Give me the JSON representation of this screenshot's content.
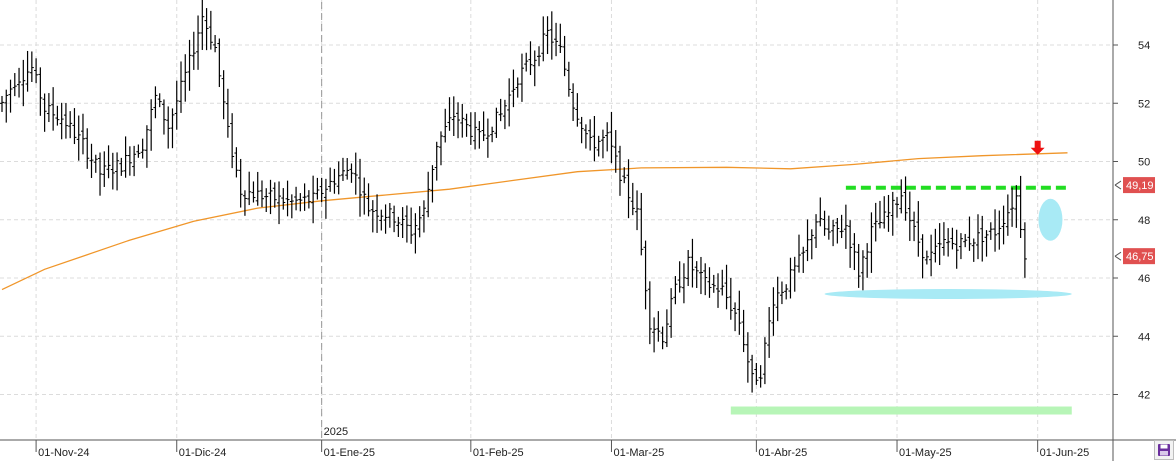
{
  "chart_data": {
    "type": "ohlc",
    "y_ticks": [
      "42",
      "44",
      "46",
      "48",
      "50",
      "52",
      "54"
    ],
    "ylim": [
      40.8,
      55.5
    ],
    "x_ticks": [
      {
        "label": "01-Nov-24",
        "bar": 8
      },
      {
        "label": "01-Dic-24",
        "bar": 41
      },
      {
        "label": "01-Ene-25",
        "bar": 75
      },
      {
        "label": "01-Feb-25",
        "bar": 110
      },
      {
        "label": "01-Mar-25",
        "bar": 143
      },
      {
        "label": "01-Abr-25",
        "bar": 177
      },
      {
        "label": "01-May-25",
        "bar": 210
      },
      {
        "label": "01-Jun-25",
        "bar": 243
      }
    ],
    "year_marker": {
      "label": "2025",
      "bar": 75
    },
    "price_tags": [
      {
        "label": "49,19",
        "value": 49.19
      },
      {
        "label": "46,75",
        "value": 46.75
      }
    ],
    "bar_count": 257,
    "grid": true,
    "colors": {
      "bars": "#000000",
      "moving_average": "#f0962a",
      "resistance": "#22dd22",
      "support": "#b7f5b7",
      "highlight": "#a8eaf5",
      "arrow": "#ee1111",
      "price_tag": "#e05050",
      "grid": "#dcdcdc"
    },
    "resistance_line": {
      "value": 49.1,
      "from_bar": 198,
      "to_bar": 250
    },
    "support_line": {
      "value": 41.45,
      "from_bar": 171,
      "to_bar": 251
    },
    "highlight_ellipse": {
      "value": 45.45,
      "from_bar": 193,
      "to_bar": 251
    },
    "highlight_oval": {
      "value": 48.0,
      "bar": 246
    },
    "arrow_marker": {
      "bar": 243,
      "value": 50.3
    },
    "moving_average": [
      {
        "bar": 0,
        "value": 45.6
      },
      {
        "bar": 10,
        "value": 46.3
      },
      {
        "bar": 20,
        "value": 46.8
      },
      {
        "bar": 30,
        "value": 47.3
      },
      {
        "bar": 45,
        "value": 47.95
      },
      {
        "bar": 60,
        "value": 48.4
      },
      {
        "bar": 75,
        "value": 48.65
      },
      {
        "bar": 90,
        "value": 48.85
      },
      {
        "bar": 105,
        "value": 49.05
      },
      {
        "bar": 120,
        "value": 49.35
      },
      {
        "bar": 135,
        "value": 49.65
      },
      {
        "bar": 150,
        "value": 49.78
      },
      {
        "bar": 170,
        "value": 49.8
      },
      {
        "bar": 185,
        "value": 49.75
      },
      {
        "bar": 200,
        "value": 49.9
      },
      {
        "bar": 215,
        "value": 50.1
      },
      {
        "bar": 230,
        "value": 50.2
      },
      {
        "bar": 250,
        "value": 50.3
      }
    ],
    "price_path": [
      {
        "bar": 0,
        "value": 52.0
      },
      {
        "bar": 3,
        "value": 52.8
      },
      {
        "bar": 7,
        "value": 53.2
      },
      {
        "bar": 10,
        "value": 51.8
      },
      {
        "bar": 14,
        "value": 51.5
      },
      {
        "bar": 19,
        "value": 50.6
      },
      {
        "bar": 23,
        "value": 49.6
      },
      {
        "bar": 28,
        "value": 49.9
      },
      {
        "bar": 33,
        "value": 50.6
      },
      {
        "bar": 36,
        "value": 52.2
      },
      {
        "bar": 39,
        "value": 51.2
      },
      {
        "bar": 44,
        "value": 53.4
      },
      {
        "bar": 47,
        "value": 55.0
      },
      {
        "bar": 50,
        "value": 53.9
      },
      {
        "bar": 53,
        "value": 51.0
      },
      {
        "bar": 56,
        "value": 49.0
      },
      {
        "bar": 62,
        "value": 48.8
      },
      {
        "bar": 68,
        "value": 48.6
      },
      {
        "bar": 73,
        "value": 48.7
      },
      {
        "bar": 78,
        "value": 49.4
      },
      {
        "bar": 82,
        "value": 49.8
      },
      {
        "bar": 86,
        "value": 48.4
      },
      {
        "bar": 92,
        "value": 48.1
      },
      {
        "bar": 96,
        "value": 47.6
      },
      {
        "bar": 99,
        "value": 48.3
      },
      {
        "bar": 102,
        "value": 50.6
      },
      {
        "bar": 106,
        "value": 51.6
      },
      {
        "bar": 112,
        "value": 50.8
      },
      {
        "bar": 117,
        "value": 51.6
      },
      {
        "bar": 121,
        "value": 52.9
      },
      {
        "bar": 125,
        "value": 53.6
      },
      {
        "bar": 128,
        "value": 54.4
      },
      {
        "bar": 131,
        "value": 53.8
      },
      {
        "bar": 134,
        "value": 52.0
      },
      {
        "bar": 138,
        "value": 50.6
      },
      {
        "bar": 142,
        "value": 50.8
      },
      {
        "bar": 146,
        "value": 49.2
      },
      {
        "bar": 149,
        "value": 48.2
      },
      {
        "bar": 152,
        "value": 44.5
      },
      {
        "bar": 155,
        "value": 44.0
      },
      {
        "bar": 158,
        "value": 45.6
      },
      {
        "bar": 161,
        "value": 46.5
      },
      {
        "bar": 165,
        "value": 45.8
      },
      {
        "bar": 169,
        "value": 45.6
      },
      {
        "bar": 173,
        "value": 44.5
      },
      {
        "bar": 176,
        "value": 42.5
      },
      {
        "bar": 178,
        "value": 42.8
      },
      {
        "bar": 181,
        "value": 45.3
      },
      {
        "bar": 184,
        "value": 45.8
      },
      {
        "bar": 188,
        "value": 46.8
      },
      {
        "bar": 191,
        "value": 48.0
      },
      {
        "bar": 194,
        "value": 47.5
      },
      {
        "bar": 198,
        "value": 47.8
      },
      {
        "bar": 201,
        "value": 46.2
      },
      {
        "bar": 204,
        "value": 47.6
      },
      {
        "bar": 208,
        "value": 48.2
      },
      {
        "bar": 211,
        "value": 48.9
      },
      {
        "bar": 214,
        "value": 47.6
      },
      {
        "bar": 217,
        "value": 46.6
      },
      {
        "bar": 221,
        "value": 47.2
      },
      {
        "bar": 225,
        "value": 47.2
      },
      {
        "bar": 229,
        "value": 47.4
      },
      {
        "bar": 233,
        "value": 47.6
      },
      {
        "bar": 236,
        "value": 48.3
      },
      {
        "bar": 238,
        "value": 48.8
      },
      {
        "bar": 240,
        "value": 46.9
      }
    ]
  }
}
